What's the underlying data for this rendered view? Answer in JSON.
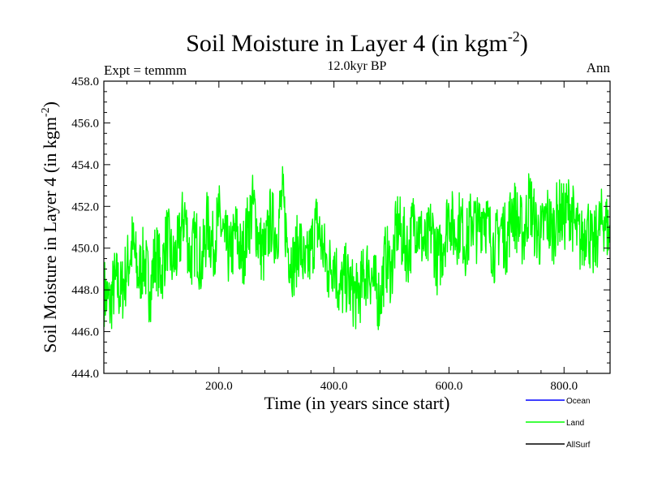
{
  "chart_data": {
    "type": "line",
    "title": "Soil Moisture in Layer 4 (in kgm",
    "title_sup": "-2",
    "title_close": ")",
    "subtitle_left": "Expt = temmm",
    "subtitle_center": "12.0kyr BP",
    "subtitle_right": "Ann",
    "xlabel": "Time (in years since start)",
    "ylabel": "Soil Moisture in Layer 4 (in kgm",
    "ylabel_sup": "-2",
    "ylabel_close": ")",
    "xlim": [
      0,
      880
    ],
    "ylim": [
      444.0,
      458.0
    ],
    "xticks": [
      200,
      400,
      600,
      800
    ],
    "xtick_labels": [
      "200.0",
      "400.0",
      "600.0",
      "800.0"
    ],
    "yticks": [
      444,
      446,
      448,
      450,
      452,
      454,
      456,
      458
    ],
    "ytick_labels": [
      "444.0",
      "446.0",
      "448.0",
      "450.0",
      "452.0",
      "454.0",
      "456.0",
      "458.0"
    ],
    "legend": [
      {
        "name": "Ocean",
        "color": "#0000ff"
      },
      {
        "name": "Land",
        "color": "#00ff00"
      },
      {
        "name": "AllSurf",
        "color": "#000000"
      }
    ],
    "series": [
      {
        "name": "Land",
        "color": "#00ff00",
        "x": [
          0,
          10,
          20,
          30,
          40,
          50,
          60,
          70,
          80,
          90,
          100,
          110,
          120,
          130,
          140,
          150,
          160,
          170,
          180,
          190,
          200,
          210,
          220,
          230,
          240,
          250,
          260,
          270,
          280,
          290,
          300,
          310,
          320,
          330,
          340,
          350,
          360,
          370,
          380,
          390,
          400,
          410,
          420,
          430,
          440,
          450,
          460,
          470,
          480,
          490,
          500,
          510,
          520,
          530,
          540,
          550,
          560,
          570,
          580,
          590,
          600,
          610,
          620,
          630,
          640,
          650,
          660,
          670,
          680,
          690,
          700,
          710,
          720,
          730,
          740,
          750,
          760,
          770,
          780,
          790,
          800,
          810,
          820,
          830,
          840,
          850,
          860,
          870,
          880
        ],
        "y": [
          448.0,
          447.2,
          448.5,
          447.8,
          449.0,
          450.2,
          448.6,
          449.5,
          447.9,
          449.8,
          448.7,
          450.6,
          449.2,
          450.0,
          451.8,
          449.4,
          450.5,
          449.1,
          451.2,
          450.0,
          451.5,
          450.3,
          449.6,
          450.8,
          449.4,
          451.0,
          452.1,
          450.2,
          449.7,
          451.4,
          450.6,
          452.5,
          450.0,
          449.2,
          450.4,
          448.8,
          449.9,
          451.2,
          450.1,
          448.9,
          449.6,
          447.8,
          448.6,
          448.0,
          447.6,
          448.4,
          449.1,
          448.2,
          447.5,
          449.6,
          448.9,
          451.2,
          450.4,
          449.8,
          451.6,
          450.7,
          449.9,
          451.0,
          449.3,
          450.2,
          451.8,
          450.6,
          451.3,
          450.1,
          451.5,
          450.8,
          451.9,
          450.7,
          449.9,
          451.1,
          450.3,
          452.0,
          451.2,
          450.6,
          452.4,
          451.0,
          450.5,
          451.6,
          450.7,
          451.8,
          451.4,
          452.1,
          450.9,
          450.2,
          451.3,
          449.8,
          450.9,
          451.5,
          450.4
        ]
      }
    ]
  }
}
